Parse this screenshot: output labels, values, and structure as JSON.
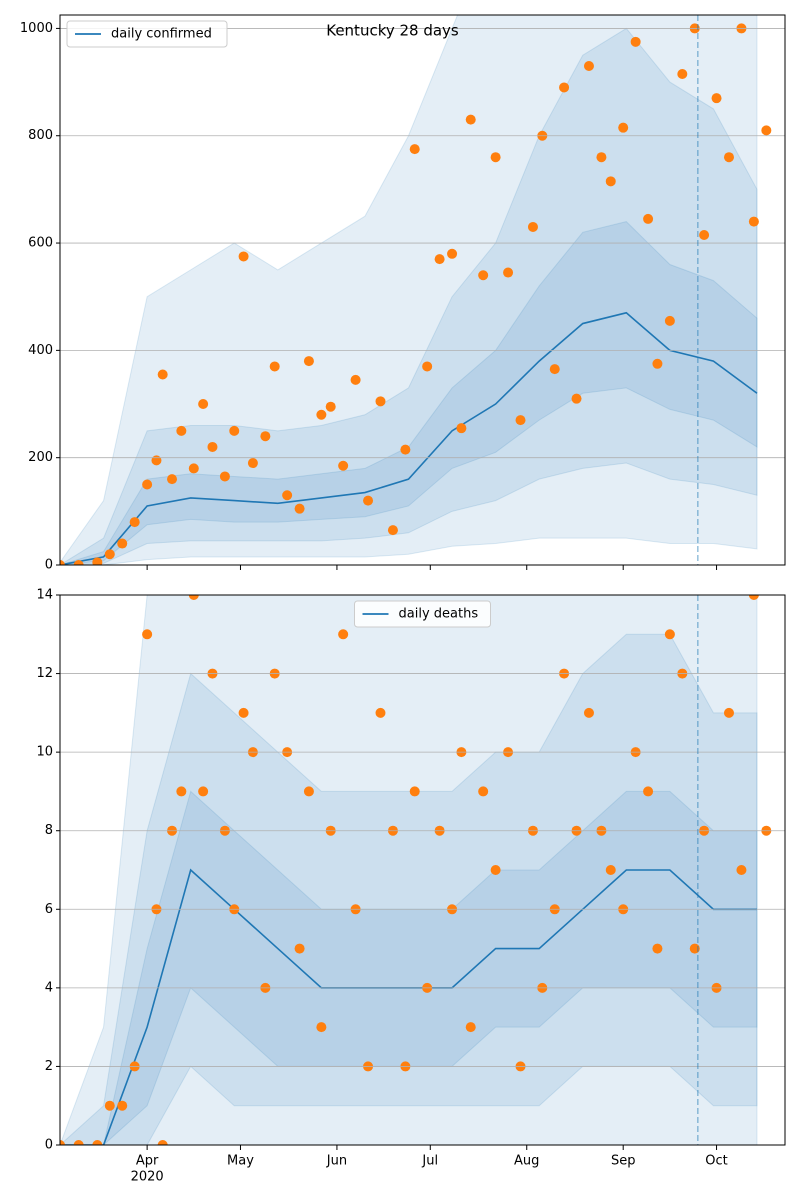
{
  "chart_data": [
    {
      "type": "line",
      "title": "Kentucky 28 days",
      "xlim": [
        64,
        297
      ],
      "xticks": [
        92,
        122,
        153,
        183,
        214,
        245,
        275
      ],
      "ylim": [
        0,
        1025
      ],
      "yticks": [
        0,
        200,
        400,
        600,
        800,
        1000
      ],
      "grid": true,
      "legend": "upper left",
      "vline_x": 269,
      "x": [
        64,
        78,
        92,
        106,
        120,
        134,
        148,
        162,
        176,
        190,
        204,
        218,
        232,
        246,
        260,
        274,
        288
      ],
      "series": [
        {
          "name": "daily confirmed",
          "color": "#1f77b4",
          "values": [
            0,
            15,
            110,
            125,
            120,
            115,
            125,
            135,
            160,
            250,
            300,
            380,
            450,
            470,
            400,
            380,
            320
          ]
        }
      ],
      "bands": [
        {
          "color": "#1f77b4",
          "lower": [
            0,
            0,
            10,
            15,
            15,
            15,
            15,
            15,
            20,
            35,
            40,
            50,
            50,
            50,
            40,
            40,
            30
          ],
          "upper": [
            5,
            120,
            500,
            550,
            600,
            550,
            600,
            650,
            800,
            1000,
            1200,
            1200,
            1200,
            1200,
            1200,
            1200,
            1200
          ]
        },
        {
          "color": "#1f77b4",
          "lower": [
            0,
            3,
            40,
            45,
            45,
            45,
            45,
            50,
            60,
            100,
            120,
            160,
            180,
            190,
            160,
            150,
            130
          ],
          "upper": [
            0,
            50,
            250,
            260,
            260,
            250,
            260,
            280,
            330,
            500,
            600,
            800,
            950,
            1000,
            900,
            850,
            700
          ]
        },
        {
          "color": "#1f77b4",
          "lower": [
            0,
            8,
            75,
            85,
            80,
            80,
            85,
            90,
            110,
            180,
            210,
            270,
            320,
            330,
            290,
            270,
            220
          ],
          "upper": [
            0,
            25,
            160,
            170,
            165,
            160,
            170,
            180,
            220,
            330,
            400,
            520,
            620,
            640,
            560,
            530,
            460
          ]
        }
      ],
      "scatter": {
        "color": "#ff7f0e",
        "x": [
          64,
          70,
          76,
          80,
          84,
          88,
          92,
          95,
          97,
          100,
          103,
          107,
          110,
          113,
          117,
          120,
          123,
          126,
          130,
          133,
          137,
          141,
          144,
          148,
          151,
          155,
          159,
          163,
          167,
          171,
          175,
          178,
          182,
          186,
          190,
          193,
          196,
          200,
          204,
          208,
          212,
          216,
          219,
          223,
          226,
          230,
          234,
          238,
          241,
          245,
          249,
          253,
          256,
          260,
          264,
          268,
          271,
          275,
          279,
          283,
          287,
          291
        ],
        "values": [
          0,
          0,
          5,
          20,
          40,
          80,
          150,
          195,
          355,
          160,
          250,
          180,
          300,
          220,
          165,
          250,
          575,
          190,
          240,
          370,
          130,
          105,
          380,
          280,
          295,
          185,
          345,
          120,
          305,
          65,
          215,
          775,
          370,
          570,
          580,
          255,
          830,
          540,
          760,
          545,
          270,
          630,
          800,
          365,
          890,
          310,
          930,
          760,
          715,
          815,
          975,
          645,
          375,
          455,
          915,
          1000,
          615,
          870,
          760,
          1000,
          640,
          810
        ]
      }
    },
    {
      "type": "line",
      "xlim": [
        64,
        297
      ],
      "xticks": [
        {
          "value": 92,
          "label": "Apr"
        },
        {
          "value": 122,
          "label": "May"
        },
        {
          "value": 153,
          "label": "Jun"
        },
        {
          "value": 183,
          "label": "Jul"
        },
        {
          "value": 214,
          "label": "Aug"
        },
        {
          "value": 245,
          "label": "Sep"
        },
        {
          "value": 275,
          "label": "Oct"
        }
      ],
      "x_sublabel": "2020",
      "ylim": [
        0,
        14
      ],
      "yticks": [
        0,
        2,
        4,
        6,
        8,
        10,
        12,
        14
      ],
      "grid": true,
      "legend": "upper center",
      "vline_x": 269,
      "x": [
        64,
        78,
        92,
        106,
        120,
        134,
        148,
        162,
        176,
        190,
        204,
        218,
        232,
        246,
        260,
        274,
        288
      ],
      "series": [
        {
          "name": "daily deaths",
          "color": "#1f77b4",
          "values": [
            0,
            0,
            3,
            7,
            6,
            5,
            4,
            4,
            4,
            4,
            5,
            5,
            6,
            7,
            7,
            6,
            6
          ]
        }
      ],
      "bands": [
        {
          "color": "#1f77b4",
          "lower": [
            0,
            0,
            0,
            0,
            0,
            0,
            0,
            0,
            0,
            0,
            0,
            0,
            0,
            0,
            0,
            0,
            0
          ],
          "upper": [
            0,
            3,
            14,
            16,
            16,
            15,
            14,
            14,
            14,
            15,
            16,
            16,
            16,
            16,
            16,
            16,
            16
          ]
        },
        {
          "color": "#1f77b4",
          "lower": [
            0,
            0,
            0,
            2,
            1,
            1,
            1,
            1,
            1,
            1,
            1,
            1,
            2,
            2,
            2,
            1,
            1
          ],
          "upper": [
            0,
            1,
            8,
            12,
            11,
            10,
            9,
            9,
            9,
            9,
            10,
            10,
            12,
            13,
            13,
            11,
            11
          ]
        },
        {
          "color": "#1f77b4",
          "lower": [
            0,
            0,
            1,
            4,
            3,
            2,
            2,
            2,
            2,
            2,
            3,
            3,
            4,
            4,
            4,
            3,
            3
          ],
          "upper": [
            0,
            0,
            5,
            9,
            8,
            7,
            6,
            6,
            6,
            6,
            7,
            7,
            8,
            9,
            9,
            8,
            8
          ]
        }
      ],
      "scatter": {
        "color": "#ff7f0e",
        "x": [
          64,
          70,
          76,
          80,
          84,
          88,
          92,
          95,
          97,
          100,
          103,
          107,
          110,
          113,
          117,
          120,
          123,
          126,
          130,
          133,
          137,
          141,
          144,
          148,
          151,
          155,
          159,
          163,
          167,
          171,
          175,
          178,
          182,
          186,
          190,
          193,
          196,
          200,
          204,
          208,
          212,
          216,
          219,
          223,
          226,
          230,
          234,
          238,
          241,
          245,
          249,
          253,
          256,
          260,
          264,
          268,
          271,
          275,
          279,
          283,
          287,
          291
        ],
        "values": [
          0,
          0,
          0,
          1,
          1,
          2,
          13,
          6,
          0,
          8,
          9,
          14,
          9,
          12,
          8,
          6,
          11,
          10,
          4,
          12,
          10,
          5,
          9,
          3,
          8,
          13,
          6,
          2,
          11,
          8,
          2,
          9,
          4,
          8,
          6,
          10,
          3,
          9,
          7,
          10,
          2,
          8,
          4,
          6,
          12,
          8,
          11,
          8,
          7,
          6,
          10,
          9,
          5,
          13,
          12,
          5,
          8,
          4,
          11,
          7,
          14,
          8
        ]
      }
    }
  ]
}
